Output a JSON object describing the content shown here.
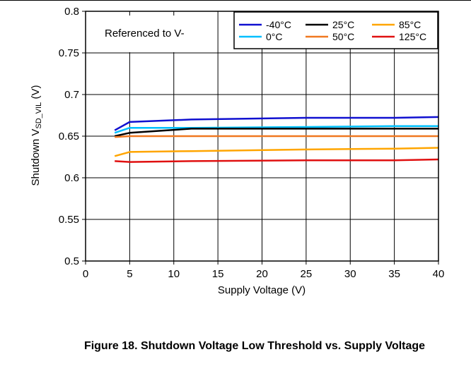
{
  "caption": "Figure 18. Shutdown Voltage Low Threshold vs. Supply Voltage",
  "chart_data": {
    "type": "line",
    "xlabel": "Supply Voltage (V)",
    "ylabel_main": "Shutdown V",
    "ylabel_sub": "SD_VIL",
    "ylabel_unit": " (V)",
    "xlim": [
      0,
      40
    ],
    "ylim": [
      0.5,
      0.8
    ],
    "xticks": [
      0,
      5,
      10,
      15,
      20,
      25,
      30,
      35,
      40
    ],
    "yticks": [
      0.5,
      0.55,
      0.6,
      0.65,
      0.7,
      0.75,
      0.8
    ],
    "ytick_labels": [
      "0.5",
      "0.55",
      "0.6",
      "0.65",
      "0.7",
      "0.75",
      "0.8"
    ],
    "grid": true,
    "annotation": "Referenced to V-",
    "legend_position": "top-right",
    "series": [
      {
        "name": "-40°C",
        "color": "#1010d0",
        "points": [
          [
            3.3,
            0.657
          ],
          [
            5,
            0.667
          ],
          [
            12,
            0.67
          ],
          [
            25,
            0.672
          ],
          [
            35,
            0.672
          ],
          [
            40,
            0.673
          ]
        ]
      },
      {
        "name": "0°C",
        "color": "#00bfff",
        "points": [
          [
            3.3,
            0.654
          ],
          [
            5,
            0.66
          ],
          [
            12,
            0.66
          ],
          [
            25,
            0.661
          ],
          [
            35,
            0.662
          ],
          [
            40,
            0.662
          ]
        ]
      },
      {
        "name": "25°C",
        "color": "#000000",
        "points": [
          [
            3.3,
            0.65
          ],
          [
            5,
            0.654
          ],
          [
            12,
            0.659
          ],
          [
            25,
            0.659
          ],
          [
            35,
            0.659
          ],
          [
            40,
            0.659
          ]
        ]
      },
      {
        "name": "50°C",
        "color": "#f07820",
        "points": [
          [
            3.3,
            0.649
          ],
          [
            5,
            0.65
          ],
          [
            12,
            0.65
          ],
          [
            25,
            0.65
          ],
          [
            35,
            0.65
          ],
          [
            40,
            0.65
          ]
        ]
      },
      {
        "name": "85°C",
        "color": "#ffa500",
        "points": [
          [
            3.3,
            0.626
          ],
          [
            5,
            0.631
          ],
          [
            12,
            0.632
          ],
          [
            25,
            0.634
          ],
          [
            35,
            0.635
          ],
          [
            40,
            0.636
          ]
        ]
      },
      {
        "name": "125°C",
        "color": "#e01010",
        "points": [
          [
            3.3,
            0.62
          ],
          [
            5,
            0.619
          ],
          [
            12,
            0.62
          ],
          [
            25,
            0.621
          ],
          [
            35,
            0.621
          ],
          [
            40,
            0.622
          ]
        ]
      }
    ]
  }
}
